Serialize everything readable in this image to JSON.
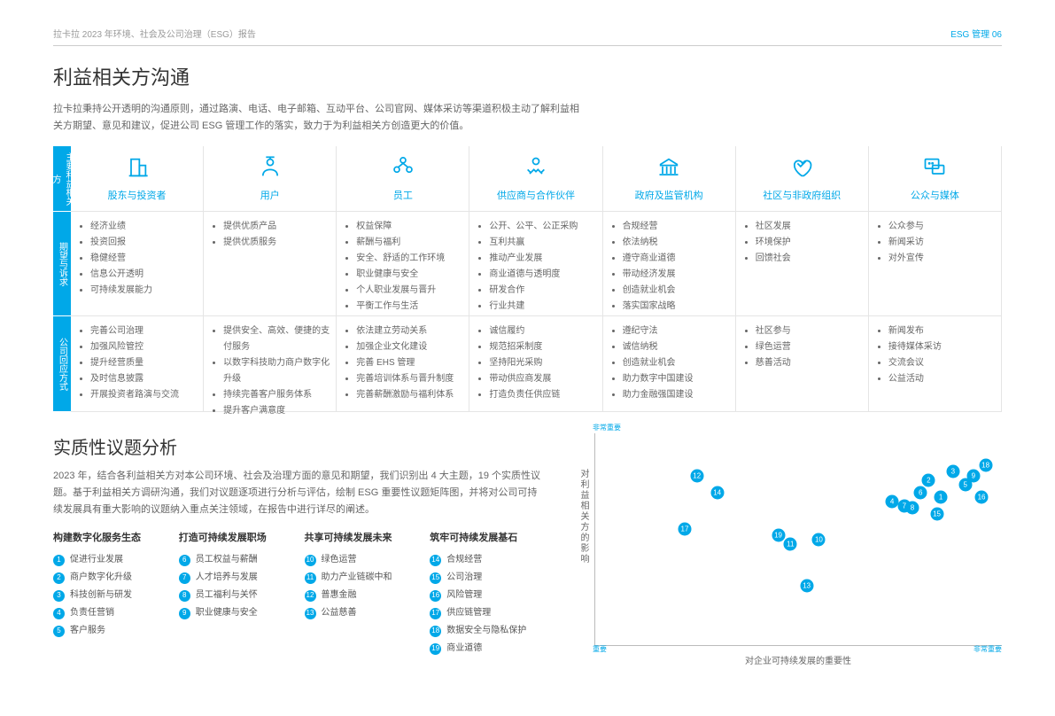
{
  "header": {
    "left": "拉卡拉 2023 年环境、社会及公司治理（ESG）报告",
    "right": "ESG 管理   06"
  },
  "section1": {
    "title": "利益相关方沟通",
    "intro": "拉卡拉秉持公开透明的沟通原则，通过路演、电话、电子邮箱、互动平台、公司官网、媒体采访等渠道积极主动了解利益相关方期望、意见和建议，促进公司 ESG 管理工作的落实，致力于为利益相关方创造更大的价值。",
    "rowLabels": [
      "主要利益相关方",
      "期望与诉求",
      "公司回应方式"
    ],
    "cols": [
      {
        "icon": "building",
        "label": "股东与投资者",
        "a": [
          "经济业绩",
          "投资回报",
          "稳健经营",
          "信息公开透明",
          "可持续发展能力"
        ],
        "b": [
          "完善公司治理",
          "加强风险管控",
          "提升经营质量",
          "及时信息披露",
          "开展投资者路演与交流"
        ]
      },
      {
        "icon": "user",
        "label": "用户",
        "a": [
          "提供优质产品",
          "提供优质服务"
        ],
        "b": [
          "提供安全、高效、便捷的支付服务",
          "以数字科技助力商户数字化升级",
          "持续完善客户服务体系",
          "提升客户满意度"
        ]
      },
      {
        "icon": "people",
        "label": "员工",
        "a": [
          "权益保障",
          "薪酬与福利",
          "安全、舒适的工作环境",
          "职业健康与安全",
          "个人职业发展与晋升",
          "平衡工作与生活"
        ],
        "b": [
          "依法建立劳动关系",
          "加强企业文化建设",
          "完善 EHS 管理",
          "完善培训体系与晋升制度",
          "完善薪酬激励与福利体系"
        ]
      },
      {
        "icon": "handshake",
        "label": "供应商与合作伙伴",
        "a": [
          "公开、公平、公正采购",
          "互利共赢",
          "推动产业发展",
          "商业道德与透明度",
          "研发合作",
          "行业共建"
        ],
        "b": [
          "诚信履约",
          "规范招采制度",
          "坚持阳光采购",
          "带动供应商发展",
          "打造负责任供应链"
        ]
      },
      {
        "icon": "gov",
        "label": "政府及监管机构",
        "a": [
          "合规经营",
          "依法纳税",
          "遵守商业道德",
          "带动经济发展",
          "创造就业机会",
          "落实国家战略"
        ],
        "b": [
          "遵纪守法",
          "诚信纳税",
          "创造就业机会",
          "助力数字中国建设",
          "助力金融强国建设"
        ]
      },
      {
        "icon": "heart",
        "label": "社区与非政府组织",
        "a": [
          "社区发展",
          "环境保护",
          "回馈社会"
        ],
        "b": [
          "社区参与",
          "绿色运营",
          "慈善活动"
        ]
      },
      {
        "icon": "chat",
        "label": "公众与媒体",
        "a": [
          "公众参与",
          "新闻采访",
          "对外宣传"
        ],
        "b": [
          "新闻发布",
          "接待媒体采访",
          "交流会议",
          "公益活动"
        ]
      }
    ]
  },
  "section2": {
    "title": "实质性议题分析",
    "intro": "2023 年，结合各利益相关方对本公司环境、社会及治理方面的意见和期望，我们识别出 4 大主题，19 个实质性议题。基于利益相关方调研沟通，我们对议题逐项进行分析与评估，绘制 ESG 重要性议题矩阵图，并将对公司可持续发展具有重大影响的议题纳入重点关注领域，在报告中进行详尽的阐述。",
    "themes": [
      {
        "h": "构建数字化服务生态",
        "items": [
          [
            1,
            "促进行业发展"
          ],
          [
            2,
            "商户数字化升级"
          ],
          [
            3,
            "科技创新与研发"
          ],
          [
            4,
            "负责任营销"
          ],
          [
            5,
            "客户服务"
          ]
        ]
      },
      {
        "h": "打造可持续发展职场",
        "items": [
          [
            6,
            "员工权益与薪酬"
          ],
          [
            7,
            "人才培养与发展"
          ],
          [
            8,
            "员工福利与关怀"
          ],
          [
            9,
            "职业健康与安全"
          ]
        ]
      },
      {
        "h": "共享可持续发展未来",
        "items": [
          [
            10,
            "绿色运营"
          ],
          [
            11,
            "助力产业链碳中和"
          ],
          [
            12,
            "普惠金融"
          ],
          [
            13,
            "公益慈善"
          ]
        ]
      },
      {
        "h": "筑牢可持续发展基石",
        "items": [
          [
            14,
            "合规经营"
          ],
          [
            15,
            "公司治理"
          ],
          [
            16,
            "风险管理"
          ],
          [
            17,
            "供应链管理"
          ],
          [
            18,
            "数据安全与隐私保护"
          ],
          [
            19,
            "商业道德"
          ]
        ]
      }
    ],
    "yaxis": "对利益相关方的影响",
    "xaxis": "对企业可持续发展的重要性",
    "corners": {
      "tl": "非常重要",
      "br": "非常重要",
      "bl": "重要"
    },
    "points": [
      {
        "n": 1,
        "x": 85,
        "y": 70
      },
      {
        "n": 2,
        "x": 82,
        "y": 78
      },
      {
        "n": 3,
        "x": 88,
        "y": 82
      },
      {
        "n": 4,
        "x": 73,
        "y": 68
      },
      {
        "n": 5,
        "x": 91,
        "y": 76
      },
      {
        "n": 6,
        "x": 80,
        "y": 72
      },
      {
        "n": 7,
        "x": 76,
        "y": 66
      },
      {
        "n": 8,
        "x": 78,
        "y": 65
      },
      {
        "n": 9,
        "x": 93,
        "y": 80
      },
      {
        "n": 10,
        "x": 55,
        "y": 50
      },
      {
        "n": 11,
        "x": 48,
        "y": 48
      },
      {
        "n": 12,
        "x": 25,
        "y": 80
      },
      {
        "n": 13,
        "x": 52,
        "y": 28
      },
      {
        "n": 14,
        "x": 30,
        "y": 72
      },
      {
        "n": 15,
        "x": 84,
        "y": 62
      },
      {
        "n": 16,
        "x": 95,
        "y": 70
      },
      {
        "n": 17,
        "x": 22,
        "y": 55
      },
      {
        "n": 18,
        "x": 96,
        "y": 85
      },
      {
        "n": 19,
        "x": 45,
        "y": 52
      }
    ]
  },
  "colors": {
    "accent": "#00a8e8"
  }
}
